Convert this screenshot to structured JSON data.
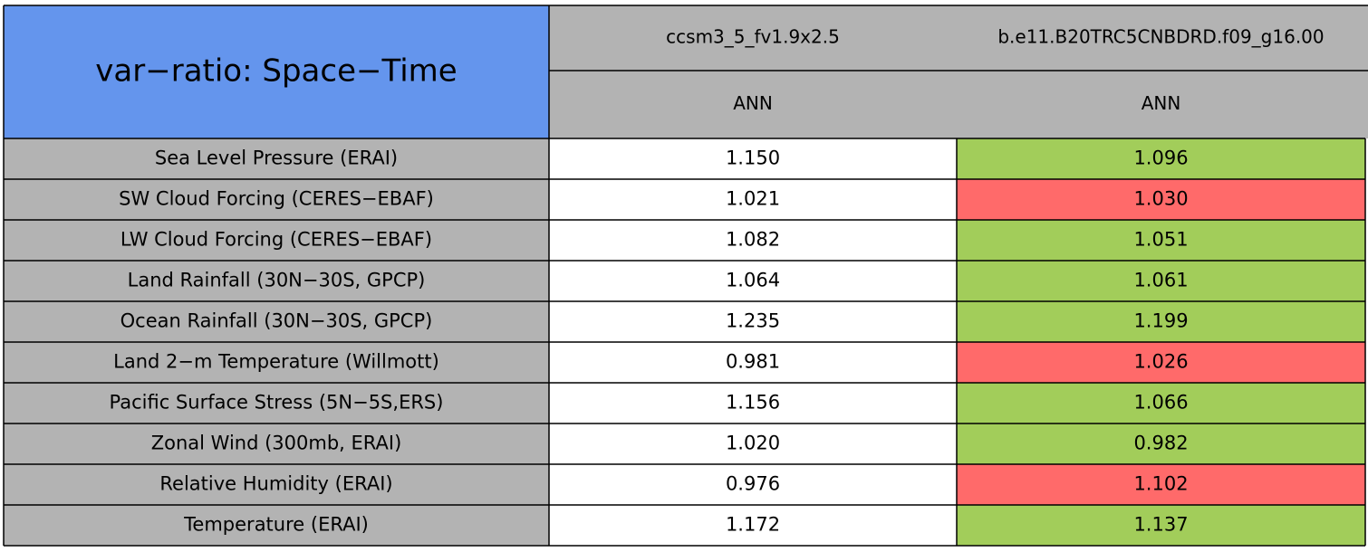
{
  "table": {
    "title": "var−ratio: Space−Time",
    "columns": [
      {
        "case": "ccsm3_5_fv1.9x2.5",
        "season": "ANN"
      },
      {
        "case": "b.e11.B20TRC5CNBDRD.f09_g16.00",
        "season": "ANN"
      }
    ],
    "rows": [
      {
        "label": "Sea Level Pressure (ERAI)",
        "values": [
          "1.150",
          "1.096"
        ],
        "color": "#a2cd5a"
      },
      {
        "label": "SW Cloud Forcing (CERES−EBAF)",
        "values": [
          "1.021",
          "1.030"
        ],
        "color": "#ff6a6a"
      },
      {
        "label": "LW Cloud Forcing (CERES−EBAF)",
        "values": [
          "1.082",
          "1.051"
        ],
        "color": "#a2cd5a"
      },
      {
        "label": "Land Rainfall (30N−30S, GPCP)",
        "values": [
          "1.064",
          "1.061"
        ],
        "color": "#a2cd5a"
      },
      {
        "label": "Ocean Rainfall (30N−30S, GPCP)",
        "values": [
          "1.235",
          "1.199"
        ],
        "color": "#a2cd5a"
      },
      {
        "label": "Land 2−m Temperature (Willmott)",
        "values": [
          "0.981",
          "1.026"
        ],
        "color": "#ff6a6a"
      },
      {
        "label": "Pacific Surface Stress (5N−5S,ERS)",
        "values": [
          "1.156",
          "1.066"
        ],
        "color": "#a2cd5a"
      },
      {
        "label": "Zonal Wind (300mb, ERAI)",
        "values": [
          "1.020",
          "0.982"
        ],
        "color": "#a2cd5a"
      },
      {
        "label": "Relative Humidity (ERAI)",
        "values": [
          "0.976",
          "1.102"
        ],
        "color": "#ff6a6a"
      },
      {
        "label": "Temperature (ERAI)",
        "values": [
          "1.172",
          "1.137"
        ],
        "color": "#a2cd5a"
      }
    ]
  }
}
